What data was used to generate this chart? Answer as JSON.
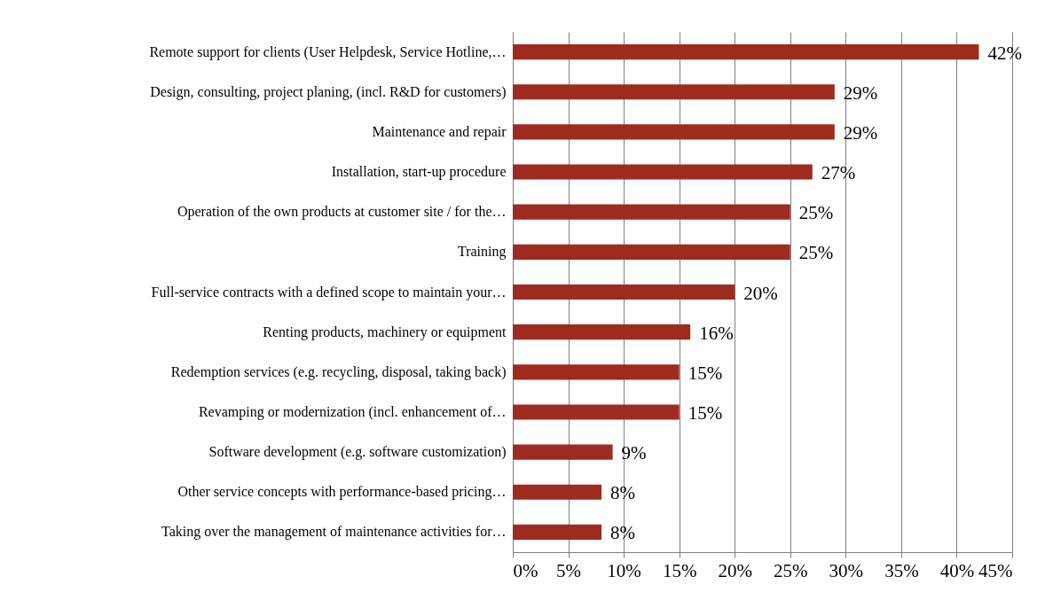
{
  "chart_data": {
    "type": "bar",
    "orientation": "horizontal",
    "categories": [
      "Remote support for clients (User Helpdesk, Service Hotline,…",
      "Design, consulting, project planing, (incl. R&D for customers)",
      "Maintenance and repair",
      "Installation, start-up procedure",
      "Operation of the own products at customer site / for the…",
      "Training",
      "Full-service contracts with a defined scope to maintain your…",
      "Renting products, machinery or equipment",
      "Redemption services (e.g. recycling, disposal, taking back)",
      "Revamping or modernization (incl. enhancement of…",
      "Software development (e.g. software customization)",
      "Other service concepts with performance-based pricing…",
      "Taking over the management of maintenance activities for…"
    ],
    "values": [
      42,
      29,
      29,
      27,
      25,
      25,
      20,
      16,
      15,
      15,
      9,
      8,
      8
    ],
    "value_labels": [
      "42%",
      "29%",
      "29%",
      "27%",
      "25%",
      "25%",
      "20%",
      "16%",
      "15%",
      "15%",
      "9%",
      "8%",
      "8%"
    ],
    "color": "#9e2b1f",
    "xlim": [
      0,
      45
    ],
    "xticks": [
      {
        "value": 0,
        "label": "0%"
      },
      {
        "value": 5,
        "label": "5%"
      },
      {
        "value": 10,
        "label": "10%"
      },
      {
        "value": 15,
        "label": "15%"
      },
      {
        "value": 20,
        "label": "20%"
      },
      {
        "value": 25,
        "label": "25%"
      },
      {
        "value": 30,
        "label": "30%"
      },
      {
        "value": 35,
        "label": "35%"
      },
      {
        "value": 40,
        "label": "40%"
      },
      {
        "value": 45,
        "label": "45%"
      }
    ],
    "grid": "x"
  }
}
